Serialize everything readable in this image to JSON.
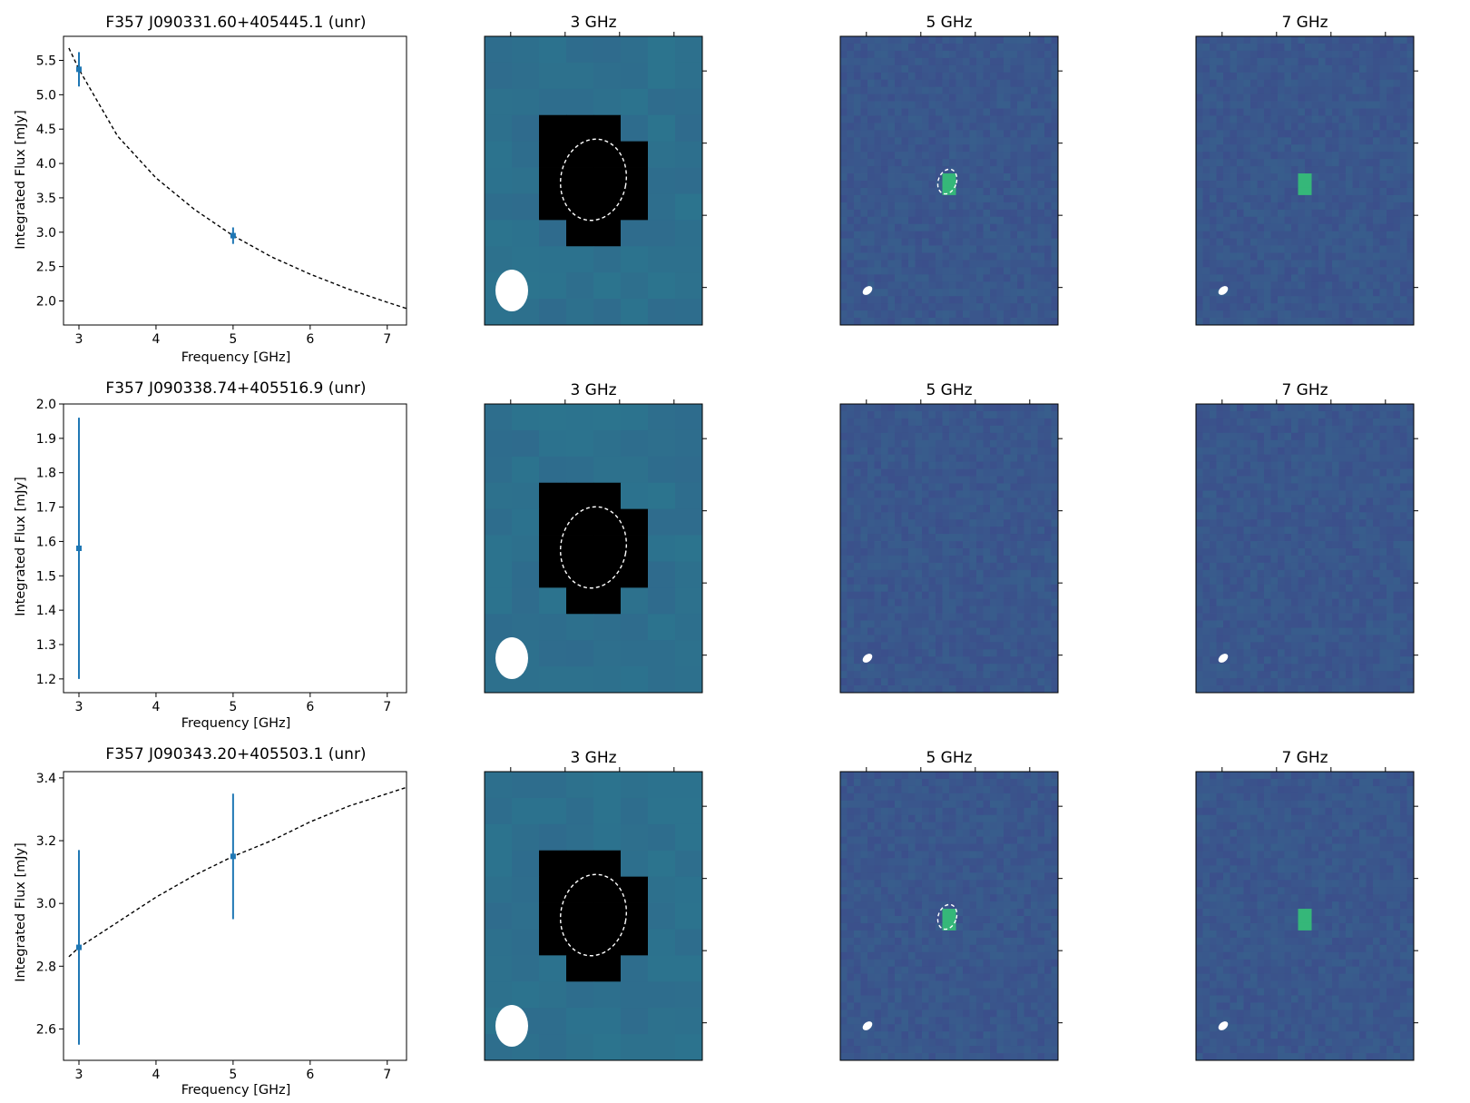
{
  "colors": {
    "series": "#1f77b4",
    "fit": "#000000",
    "bg_3ghz": "#2a7d8e",
    "bg_hi": "#33728d",
    "hot_3ghz": "#4fc46a",
    "contour": "#ffffff",
    "beam": "#ffffff"
  },
  "chart_data": [
    {
      "type": "scatter",
      "title": "F357 J090331.60+405445.1 (unr)",
      "xlabel": "Frequency [GHz]",
      "ylabel": "Integrated Flux [mJy]",
      "xlim": [
        2.8,
        7.25
      ],
      "ylim": [
        1.65,
        5.85
      ],
      "xticks": [
        "3",
        "4",
        "5",
        "6",
        "7"
      ],
      "yticks": [
        "2.0",
        "2.5",
        "3.0",
        "3.5",
        "4.0",
        "4.5",
        "5.0",
        "5.5"
      ],
      "points": [
        {
          "x": 3,
          "y": 5.37,
          "yerr": 0.25
        },
        {
          "x": 5,
          "y": 2.95,
          "yerr": 0.12
        }
      ],
      "fit_curve": {
        "style": "dashed",
        "x": [
          2.87,
          3.0,
          3.5,
          4.0,
          4.5,
          5.0,
          5.5,
          6.0,
          6.5,
          7.0,
          7.25
        ],
        "y": [
          5.68,
          5.37,
          4.4,
          3.79,
          3.33,
          2.95,
          2.64,
          2.39,
          2.17,
          1.98,
          1.89
        ]
      }
    },
    {
      "type": "scatter",
      "title": "F357 J090338.74+405516.9 (unr)",
      "xlabel": "Frequency [GHz]",
      "ylabel": "Integrated Flux [mJy]",
      "xlim": [
        2.8,
        7.25
      ],
      "ylim": [
        1.16,
        2.0
      ],
      "xticks": [
        "3",
        "4",
        "5",
        "6",
        "7"
      ],
      "yticks": [
        "1.2",
        "1.3",
        "1.4",
        "1.5",
        "1.6",
        "1.7",
        "1.8",
        "1.9",
        "2.0"
      ],
      "points": [
        {
          "x": 3,
          "y": 1.58,
          "yerr": 0.38
        }
      ]
    },
    {
      "type": "scatter",
      "title": "F357 J090343.20+405503.1 (unr)",
      "xlabel": "Frequency [GHz]",
      "ylabel": "Integrated Flux [mJy]",
      "xlim": [
        2.8,
        7.25
      ],
      "ylim": [
        2.5,
        3.42
      ],
      "xticks": [
        "3",
        "4",
        "5",
        "6",
        "7"
      ],
      "yticks": [
        "2.6",
        "2.8",
        "3.0",
        "3.2",
        "3.4"
      ],
      "points": [
        {
          "x": 3,
          "y": 2.86,
          "yerr": 0.31
        },
        {
          "x": 5,
          "y": 3.15,
          "yerr": 0.2
        }
      ],
      "fit_curve": {
        "style": "dashed",
        "x": [
          2.87,
          3.0,
          3.5,
          4.0,
          4.5,
          5.0,
          5.5,
          6.0,
          6.5,
          7.0,
          7.25
        ],
        "y": [
          2.83,
          2.86,
          2.94,
          3.02,
          3.09,
          3.15,
          3.2,
          3.26,
          3.31,
          3.35,
          3.37
        ]
      }
    },
    {
      "type": "heatmap",
      "panels": [
        {
          "title": "3 GHz",
          "source": "visible"
        },
        {
          "title": "5 GHz",
          "source": "visible"
        },
        {
          "title": "7 GHz",
          "source": "visible"
        },
        {
          "title": "3 GHz",
          "source": "visible"
        },
        {
          "title": "5 GHz",
          "source": "none"
        },
        {
          "title": "7 GHz",
          "source": "none"
        },
        {
          "title": "3 GHz",
          "source": "visible"
        },
        {
          "title": "5 GHz",
          "source": "visible"
        },
        {
          "title": "7 GHz",
          "source": "visible"
        }
      ],
      "colormap": "viridis",
      "source_contour": "dashed ellipse",
      "beam": "filled ellipse"
    }
  ]
}
